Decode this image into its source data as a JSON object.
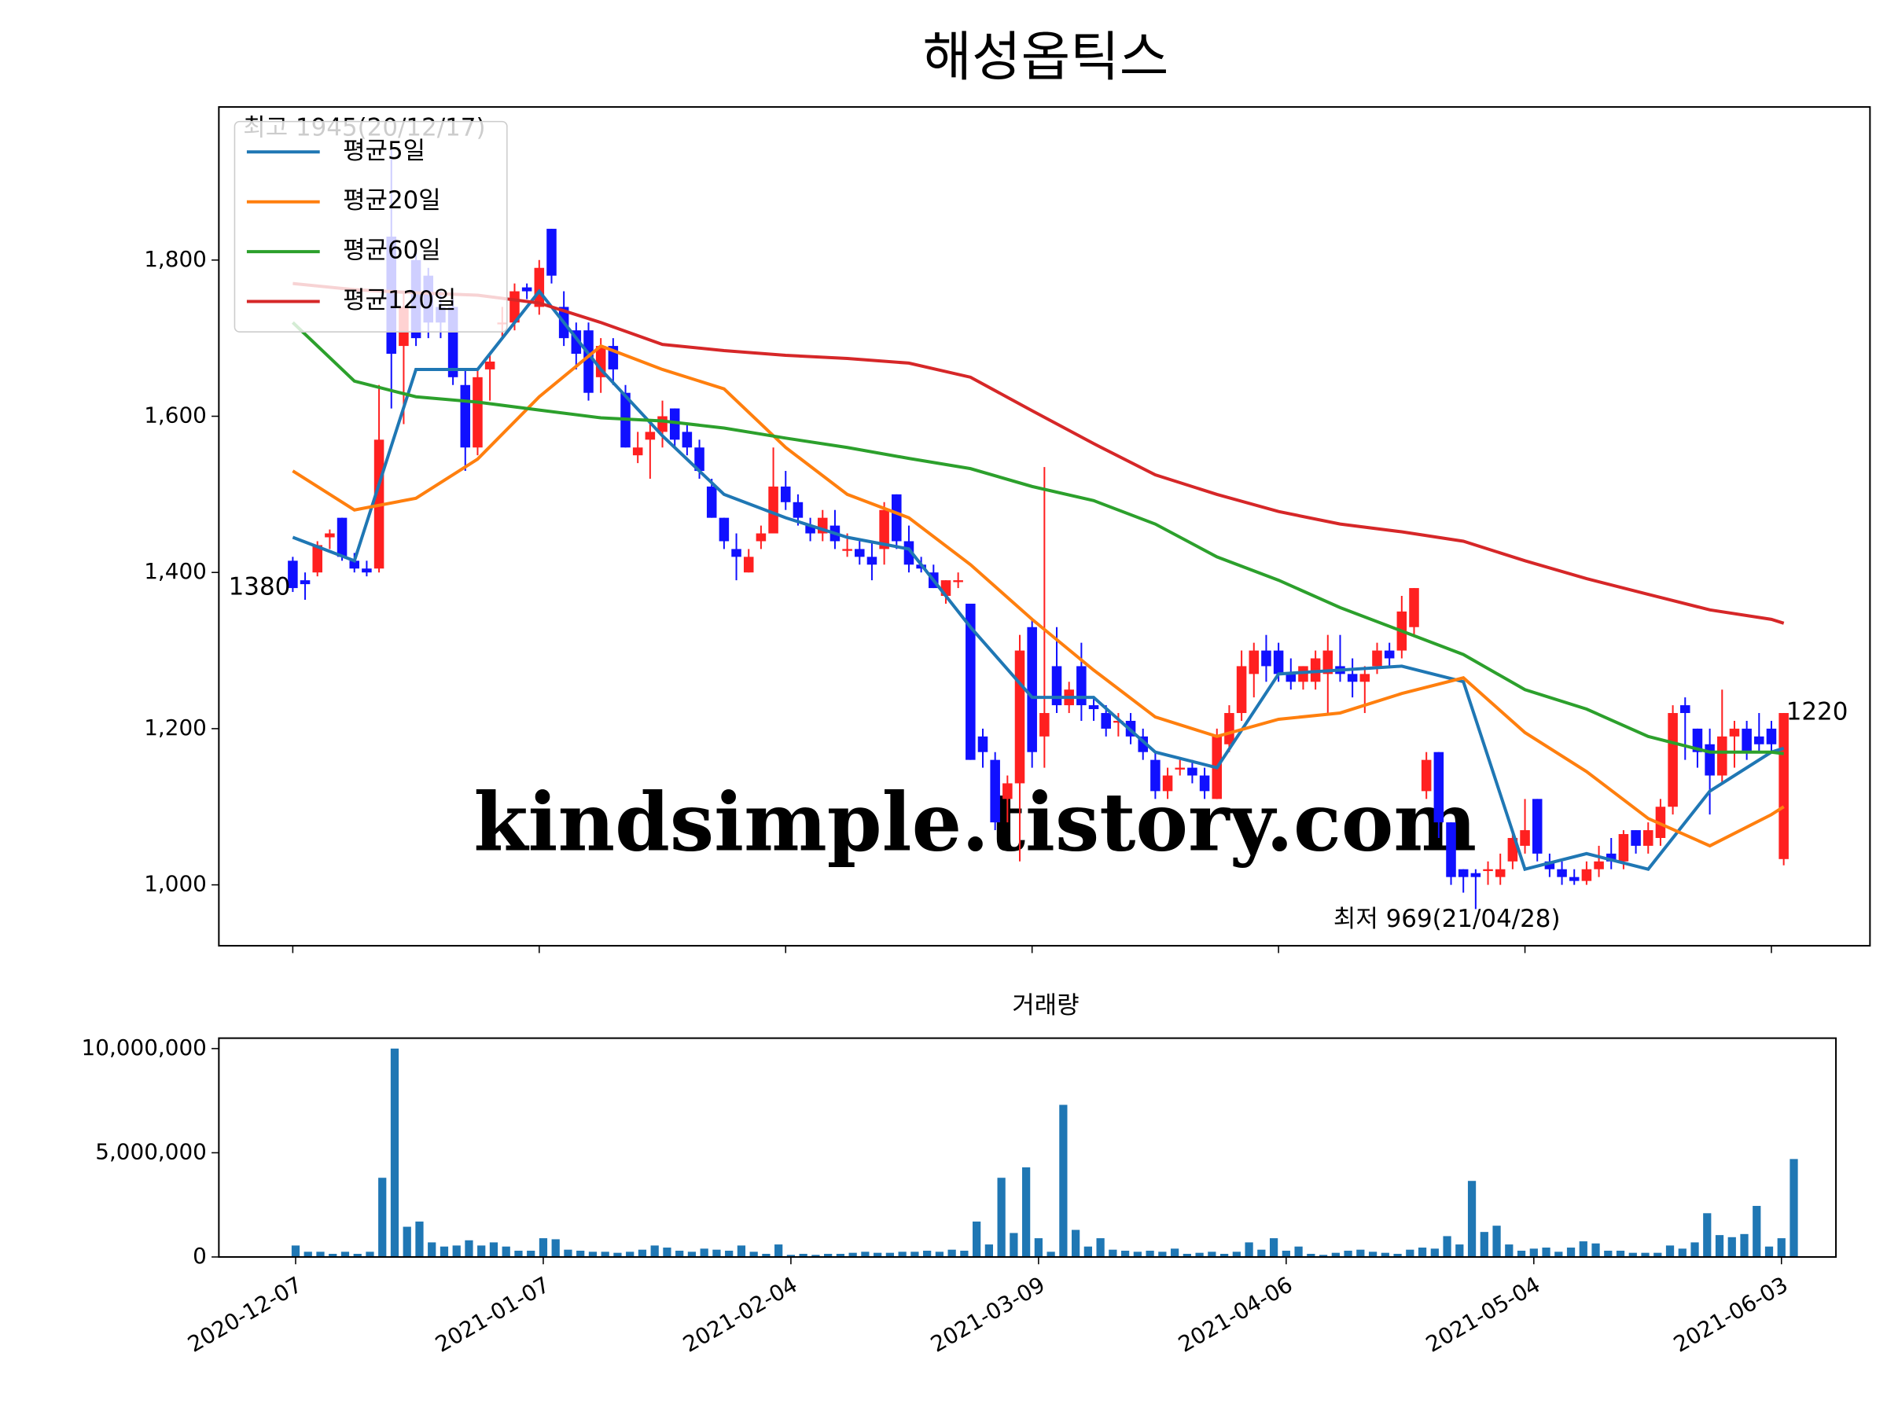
{
  "chart_data": [
    {
      "type": "candlestick",
      "title": "해성옵틱스",
      "open": [
        1415,
        1390,
        1400,
        1445,
        1470,
        1415,
        1405,
        1405,
        1830,
        1690,
        1800,
        1780,
        1740,
        1740,
        1640,
        1560,
        1660,
        1720,
        1720,
        1765,
        1740,
        1840,
        1740,
        1710,
        1710,
        1650,
        1690,
        1630,
        1550,
        1570,
        1580,
        1610,
        1580,
        1560,
        1510,
        1470,
        1430,
        1400,
        1440,
        1450,
        1510,
        1490,
        1460,
        1450,
        1460,
        1430,
        1430,
        1420,
        1430,
        1500,
        1440,
        1410,
        1400,
        1370,
        1390,
        1360,
        1190,
        1160,
        1110,
        1130,
        1330,
        1190,
        1280,
        1230,
        1280,
        1230,
        1220,
        1210,
        1210,
        1190,
        1160,
        1120,
        1150,
        1150,
        1140,
        1110,
        1180,
        1220,
        1270,
        1300,
        1300,
        1270,
        1260,
        1260,
        1270,
        1280,
        1270,
        1260,
        1280,
        1300,
        1300,
        1330,
        1120,
        1170,
        1080,
        1020,
        1015,
        1020,
        1010,
        1030,
        1050,
        1110,
        1030,
        1020,
        1010,
        1005,
        1020,
        1040,
        1030,
        1070,
        1050,
        1060,
        1100,
        1230,
        1200,
        1180,
        1140,
        1190,
        1200,
        1190,
        1200,
        1033
      ],
      "high": [
        1420,
        1400,
        1440,
        1455,
        1470,
        1425,
        1415,
        1640,
        1945,
        1760,
        1810,
        1790,
        1760,
        1750,
        1660,
        1660,
        1680,
        1740,
        1770,
        1770,
        1800,
        1840,
        1760,
        1720,
        1720,
        1700,
        1700,
        1640,
        1580,
        1590,
        1620,
        1610,
        1590,
        1570,
        1520,
        1470,
        1450,
        1430,
        1460,
        1560,
        1530,
        1500,
        1470,
        1480,
        1480,
        1450,
        1440,
        1440,
        1490,
        1500,
        1460,
        1420,
        1410,
        1390,
        1400,
        1360,
        1200,
        1170,
        1140,
        1320,
        1340,
        1535,
        1330,
        1260,
        1310,
        1240,
        1230,
        1220,
        1220,
        1200,
        1170,
        1150,
        1160,
        1160,
        1150,
        1200,
        1230,
        1300,
        1310,
        1320,
        1310,
        1290,
        1280,
        1300,
        1320,
        1320,
        1290,
        1280,
        1310,
        1310,
        1370,
        1380,
        1170,
        1170,
        1080,
        1020,
        1020,
        1030,
        1040,
        1070,
        1110,
        1110,
        1040,
        1030,
        1020,
        1030,
        1050,
        1060,
        1070,
        1070,
        1080,
        1110,
        1230,
        1240,
        1200,
        1200,
        1250,
        1210,
        1210,
        1220,
        1210,
        1220
      ],
      "low": [
        1375,
        1365,
        1395,
        1430,
        1415,
        1400,
        1395,
        1400,
        1610,
        1590,
        1690,
        1700,
        1700,
        1640,
        1530,
        1550,
        1620,
        1700,
        1710,
        1750,
        1730,
        1770,
        1690,
        1660,
        1620,
        1630,
        1640,
        1560,
        1540,
        1520,
        1560,
        1560,
        1550,
        1520,
        1470,
        1430,
        1390,
        1400,
        1430,
        1450,
        1480,
        1460,
        1440,
        1440,
        1430,
        1420,
        1410,
        1390,
        1410,
        1430,
        1400,
        1400,
        1380,
        1360,
        1380,
        1160,
        1150,
        1070,
        1080,
        1030,
        1150,
        1150,
        1220,
        1220,
        1210,
        1210,
        1190,
        1190,
        1180,
        1160,
        1110,
        1110,
        1140,
        1130,
        1110,
        1110,
        1170,
        1210,
        1240,
        1260,
        1260,
        1250,
        1250,
        1250,
        1220,
        1260,
        1240,
        1220,
        1270,
        1280,
        1290,
        1320,
        1110,
        1060,
        1000,
        990,
        969,
        1000,
        1000,
        1020,
        1040,
        1030,
        1010,
        1000,
        1000,
        1000,
        1010,
        1020,
        1020,
        1040,
        1040,
        1050,
        1090,
        1160,
        1150,
        1090,
        1130,
        1150,
        1160,
        1170,
        1170,
        1025
      ],
      "close": [
        1380,
        1385,
        1435,
        1450,
        1420,
        1405,
        1400,
        1570,
        1680,
        1740,
        1700,
        1720,
        1720,
        1650,
        1560,
        1650,
        1670,
        1720,
        1760,
        1760,
        1790,
        1780,
        1700,
        1680,
        1630,
        1690,
        1660,
        1560,
        1560,
        1580,
        1600,
        1570,
        1560,
        1530,
        1470,
        1440,
        1420,
        1420,
        1450,
        1510,
        1490,
        1470,
        1450,
        1470,
        1440,
        1430,
        1420,
        1410,
        1480,
        1440,
        1410,
        1405,
        1380,
        1390,
        1390,
        1160,
        1170,
        1080,
        1130,
        1300,
        1170,
        1220,
        1230,
        1250,
        1230,
        1225,
        1200,
        1210,
        1190,
        1170,
        1120,
        1140,
        1150,
        1140,
        1120,
        1190,
        1220,
        1280,
        1300,
        1280,
        1270,
        1260,
        1280,
        1290,
        1300,
        1270,
        1260,
        1270,
        1300,
        1290,
        1350,
        1380,
        1160,
        1080,
        1010,
        1010,
        1010,
        1020,
        1020,
        1060,
        1070,
        1040,
        1020,
        1010,
        1005,
        1020,
        1030,
        1030,
        1065,
        1050,
        1070,
        1100,
        1220,
        1220,
        1170,
        1140,
        1190,
        1200,
        1170,
        1180,
        1180,
        1220
      ],
      "up_color": "#ff2020",
      "down_color": "#1010ff",
      "series": [
        {
          "name": "평균5일",
          "color": "#1f77b4",
          "x": [
            0,
            5,
            10,
            15,
            20,
            25,
            30,
            35,
            40,
            45,
            50,
            55,
            60,
            65,
            70,
            75,
            80,
            85,
            90,
            95,
            100,
            105,
            110,
            115,
            120,
            121
          ],
          "values": [
            1445,
            1415,
            1660,
            1660,
            1760,
            1660,
            1575,
            1500,
            1470,
            1445,
            1430,
            1330,
            1240,
            1240,
            1170,
            1150,
            1270,
            1275,
            1280,
            1260,
            1020,
            1040,
            1020,
            1120,
            1170,
            1175
          ]
        },
        {
          "name": "평균20일",
          "color": "#ff7f0e",
          "x": [
            0,
            5,
            10,
            15,
            20,
            25,
            30,
            35,
            40,
            45,
            50,
            55,
            60,
            65,
            70,
            75,
            80,
            85,
            90,
            95,
            100,
            105,
            110,
            115,
            120,
            121
          ],
          "values": [
            1530,
            1480,
            1495,
            1545,
            1625,
            1690,
            1660,
            1635,
            1560,
            1500,
            1470,
            1410,
            1340,
            1275,
            1215,
            1190,
            1212,
            1220,
            1245,
            1265,
            1195,
            1145,
            1085,
            1050,
            1090,
            1100
          ]
        },
        {
          "name": "평균60일",
          "color": "#2ca02c",
          "x": [
            0,
            5,
            10,
            15,
            20,
            25,
            30,
            35,
            40,
            45,
            50,
            55,
            60,
            65,
            70,
            75,
            80,
            85,
            90,
            95,
            100,
            105,
            110,
            115,
            120,
            121
          ],
          "values": [
            1720,
            1645,
            1625,
            1618,
            1608,
            1598,
            1594,
            1585,
            1572,
            1560,
            1546,
            1533,
            1510,
            1492,
            1462,
            1420,
            1390,
            1355,
            1325,
            1295,
            1250,
            1225,
            1190,
            1170,
            1170,
            1168
          ]
        },
        {
          "name": "평균120일",
          "color": "#d62728",
          "x": [
            0,
            5,
            10,
            15,
            20,
            25,
            30,
            35,
            40,
            45,
            50,
            55,
            60,
            65,
            70,
            75,
            80,
            85,
            90,
            95,
            100,
            105,
            110,
            115,
            120,
            121
          ],
          "values": [
            1770,
            1762,
            1758,
            1755,
            1745,
            1720,
            1692,
            1684,
            1678,
            1674,
            1668,
            1650,
            1607,
            1565,
            1525,
            1500,
            1478,
            1462,
            1452,
            1440,
            1415,
            1392,
            1372,
            1352,
            1340,
            1335
          ]
        }
      ],
      "annotations": [
        {
          "text": "최고 1945(20/12/17)",
          "color": "#ff0000"
        },
        {
          "text": "최저 969(21/04/28)",
          "color": "#0000ff"
        }
      ],
      "watermark": "kindsimple.tistory.com",
      "legend": "upper left",
      "xlim": [
        -6,
        128
      ],
      "xticks": [
        0,
        20,
        40,
        60,
        80,
        100,
        120
      ],
      "ylim": [
        922,
        1996
      ],
      "yticks": [
        {
          "value": 1000,
          "label": "1,000"
        },
        {
          "value": 1200,
          "label": "1,200"
        },
        {
          "value": 1400,
          "label": "1,400"
        },
        {
          "value": 1600,
          "label": "1,600"
        },
        {
          "value": 1800,
          "label": "1,800"
        }
      ]
    },
    {
      "type": "bar",
      "title": "거래량",
      "color": "#1f77b4",
      "categories": [
        "2020-12-07",
        null,
        null,
        null,
        null,
        null,
        null,
        null,
        null,
        null,
        null,
        null,
        null,
        null,
        null,
        null,
        null,
        null,
        null,
        null,
        "2021-01-07",
        null,
        null,
        null,
        null,
        null,
        null,
        null,
        null,
        null,
        null,
        null,
        null,
        null,
        null,
        null,
        null,
        null,
        null,
        null,
        "2021-02-04",
        null,
        null,
        null,
        null,
        null,
        null,
        null,
        null,
        null,
        null,
        null,
        null,
        null,
        null,
        null,
        null,
        null,
        null,
        null,
        "2021-03-09",
        null,
        null,
        null,
        null,
        null,
        null,
        null,
        null,
        null,
        null,
        null,
        null,
        null,
        null,
        null,
        null,
        null,
        null,
        null,
        "2021-04-06",
        null,
        null,
        null,
        null,
        null,
        null,
        null,
        null,
        null,
        null,
        null,
        null,
        null,
        null,
        null,
        null,
        null,
        null,
        null,
        "2021-05-04",
        null,
        null,
        null,
        null,
        null,
        null,
        null,
        null,
        null,
        null,
        null,
        null,
        null,
        null,
        null,
        null,
        null,
        null,
        null,
        "2021-06-03",
        null
      ],
      "values": [
        550000,
        250000,
        250000,
        150000,
        250000,
        150000,
        250000,
        3800000,
        10000000,
        1450000,
        1700000,
        700000,
        500000,
        550000,
        800000,
        550000,
        700000,
        500000,
        300000,
        300000,
        900000,
        850000,
        350000,
        300000,
        250000,
        250000,
        200000,
        250000,
        350000,
        550000,
        450000,
        300000,
        250000,
        400000,
        350000,
        300000,
        550000,
        250000,
        150000,
        600000,
        100000,
        150000,
        100000,
        150000,
        150000,
        200000,
        250000,
        200000,
        200000,
        250000,
        250000,
        300000,
        250000,
        350000,
        300000,
        1700000,
        600000,
        3800000,
        1150000,
        4300000,
        900000,
        250000,
        7300000,
        1300000,
        500000,
        900000,
        350000,
        300000,
        250000,
        300000,
        250000,
        400000,
        150000,
        200000,
        250000,
        150000,
        250000,
        700000,
        350000,
        900000,
        300000,
        500000,
        150000,
        100000,
        200000,
        300000,
        350000,
        250000,
        200000,
        150000,
        350000,
        450000,
        400000,
        1000000,
        600000,
        3650000,
        1200000,
        1500000,
        600000,
        300000,
        400000,
        450000,
        250000,
        450000,
        750000,
        650000,
        300000,
        300000,
        200000,
        200000,
        200000,
        550000,
        400000,
        700000,
        2100000,
        1050000,
        950000,
        1100000,
        2450000,
        500000,
        900000,
        4700000
      ],
      "xlim": [
        -6.2,
        124.4
      ],
      "ylim": [
        0,
        10500000
      ],
      "yticks": [
        0,
        {
          "value": 5000000,
          "label": "5,000,000"
        },
        {
          "value": 10000000,
          "label": "10,000,000"
        }
      ]
    }
  ]
}
